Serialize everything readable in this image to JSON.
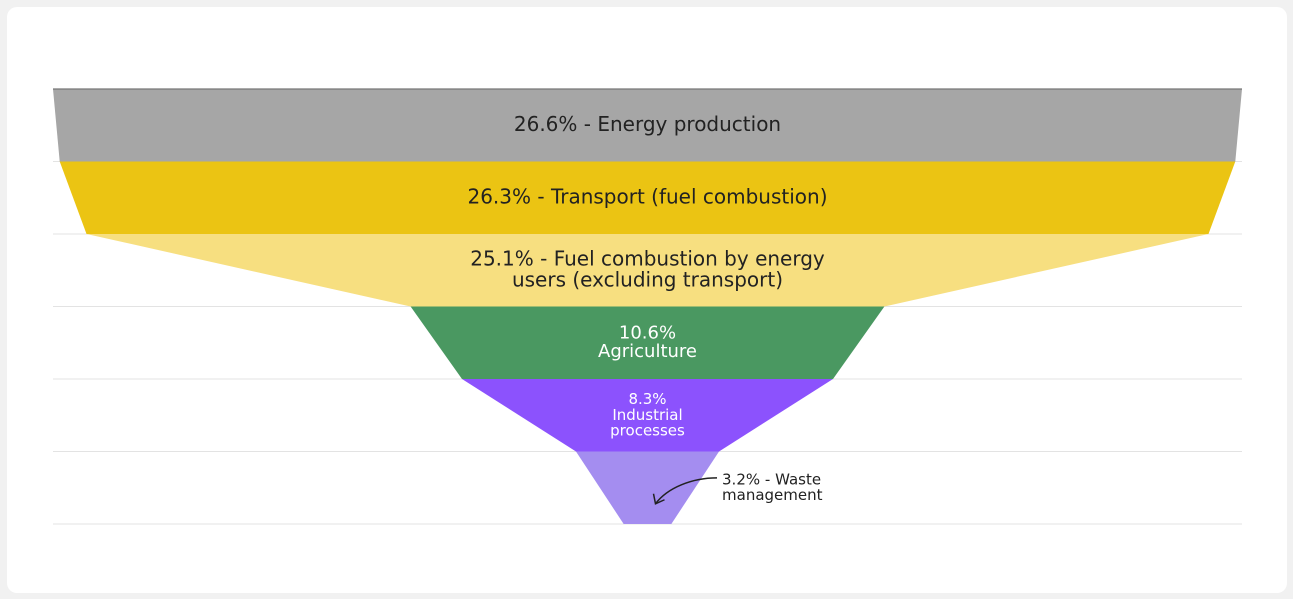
{
  "chart_data": {
    "type": "funnel",
    "values": [
      26.6,
      26.3,
      25.1,
      10.6,
      8.3,
      3.2
    ],
    "value_labels": [
      [
        "26.6% - Energy production"
      ],
      [
        "26.3% - Transport (fuel combustion)"
      ],
      [
        "25.1% - Fuel combustion by energy",
        "users (excluding transport)"
      ],
      [
        "10.6%",
        "Agriculture"
      ],
      [
        "8.3%",
        "Industrial",
        "processes"
      ],
      [
        "3.2% - Waste",
        "management"
      ]
    ],
    "colors": [
      "#a6a6a6",
      "#ebc413",
      "#f7df80",
      "#4a9861",
      "#8c52fd",
      "#a48df0"
    ],
    "label_colors": [
      "#222222",
      "#222222",
      "#222222",
      "#ffffff",
      "#ffffff",
      "#222222"
    ],
    "label_position": [
      "inside",
      "inside",
      "inside",
      "inside",
      "inside",
      "outside"
    ],
    "grid": true
  }
}
